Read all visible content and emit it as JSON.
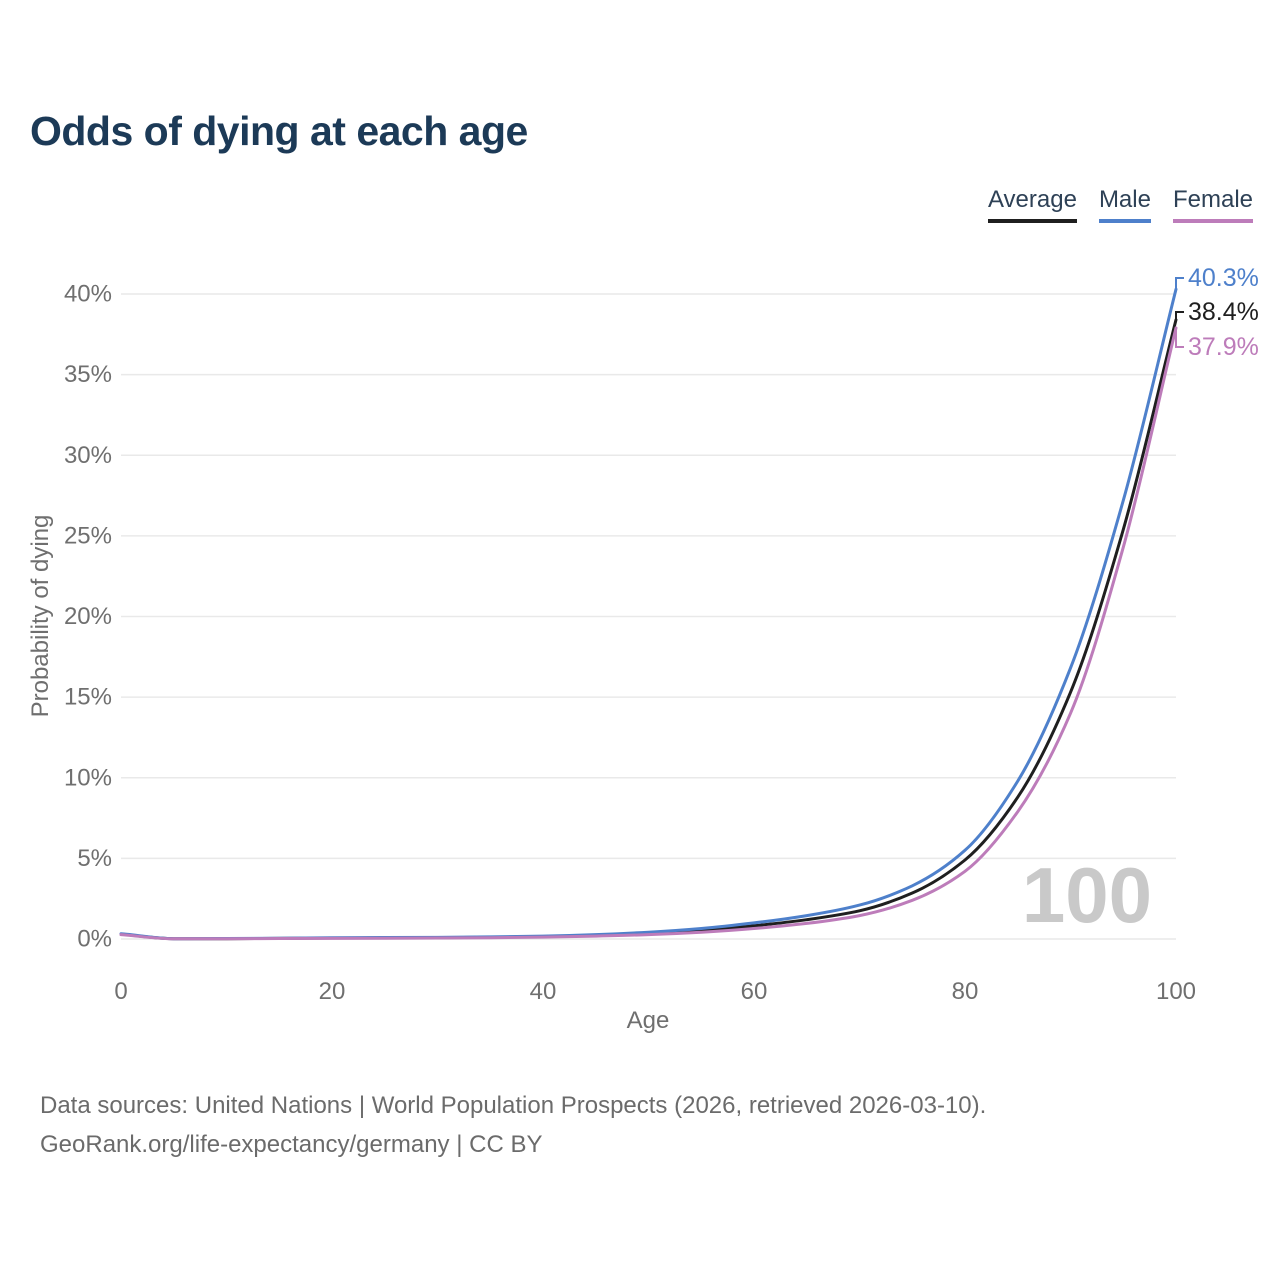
{
  "page": {
    "title": "Odds of dying at each age",
    "footer_line1": "Data sources: United Nations | World Population Prospects (2026, retrieved 2026-03-10).",
    "footer_line2": "GeoRank.org/life-expectancy/germany | CC BY"
  },
  "chart_data": {
    "type": "line",
    "title": "Odds of dying at each age",
    "xlabel": "Age",
    "ylabel": "Probability of dying",
    "xlim": [
      0,
      100
    ],
    "ylim_pct": [
      0,
      40
    ],
    "x_ticks": [
      0,
      20,
      40,
      60,
      80,
      100
    ],
    "y_ticks_pct": [
      0,
      5,
      10,
      15,
      20,
      25,
      30,
      35,
      40
    ],
    "grid": "horizontal",
    "legend_position": "top-right",
    "watermark": "100",
    "x": [
      0,
      5,
      10,
      15,
      20,
      25,
      30,
      35,
      40,
      45,
      50,
      55,
      60,
      65,
      70,
      75,
      80,
      85,
      90,
      95,
      100
    ],
    "series": [
      {
        "name": "Average",
        "color": "#1f1f1f",
        "end_label": "38.4%",
        "values_pct": [
          0.3,
          0.02,
          0.02,
          0.04,
          0.06,
          0.07,
          0.08,
          0.11,
          0.15,
          0.22,
          0.34,
          0.53,
          0.82,
          1.2,
          1.75,
          2.85,
          4.9,
          8.8,
          15.3,
          25.4,
          38.4
        ]
      },
      {
        "name": "Male",
        "color": "#4e80cb",
        "end_label": "40.3%",
        "values_pct": [
          0.33,
          0.02,
          0.03,
          0.05,
          0.08,
          0.09,
          0.1,
          0.13,
          0.18,
          0.27,
          0.42,
          0.65,
          1.0,
          1.45,
          2.1,
          3.3,
          5.5,
          9.8,
          16.8,
          27.2,
          40.3
        ]
      },
      {
        "name": "Female",
        "color": "#bd7cba",
        "end_label": "37.9%",
        "values_pct": [
          0.27,
          0.01,
          0.01,
          0.03,
          0.04,
          0.05,
          0.06,
          0.08,
          0.12,
          0.18,
          0.27,
          0.42,
          0.65,
          0.97,
          1.45,
          2.4,
          4.2,
          7.9,
          14.0,
          24.3,
          37.9
        ]
      }
    ],
    "colors": {
      "grid": "#e9e9e9",
      "axis_text": "#6f6f6f",
      "watermark": "#c9c9c9"
    }
  }
}
